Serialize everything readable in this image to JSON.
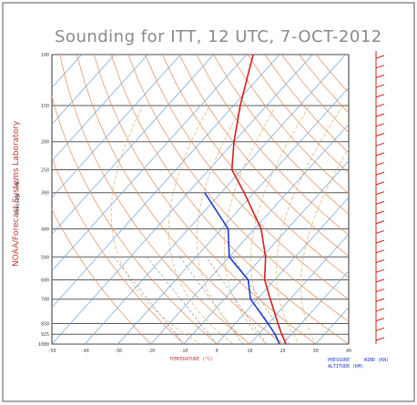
{
  "chart_data": {
    "type": "skew-t sounding",
    "title": "Sounding for ITT, 12 UTC,  7-OCT-2012",
    "side_label": "NOAA/Forecast Systems Laboratory",
    "ylabel": "PRESSURE (MB)",
    "xlabel": "TEMPERATURE (°C)",
    "right_labels": [
      "PRESSURE",
      "ALTITUDE (KM)",
      "WIND (KN)"
    ],
    "x_tick_labels": [
      "-50",
      "-40",
      "-30",
      "-20",
      "-10",
      "0",
      "10",
      "20",
      "30",
      "40"
    ],
    "y_tick_labels": [
      "100",
      "150",
      "200",
      "250",
      "300",
      "400",
      "500",
      "600",
      "700",
      "850",
      "925",
      "1000"
    ],
    "pressure_levels": [
      100,
      150,
      200,
      250,
      300,
      400,
      500,
      600,
      700,
      850,
      925,
      1000
    ],
    "temperature_range": [
      -50,
      40
    ],
    "temperature_profile_mb_c": [
      [
        1000,
        21
      ],
      [
        925,
        17
      ],
      [
        850,
        13
      ],
      [
        700,
        4
      ],
      [
        600,
        -3
      ],
      [
        500,
        -9
      ],
      [
        400,
        -18
      ],
      [
        300,
        -33
      ],
      [
        250,
        -43
      ],
      [
        200,
        -50
      ],
      [
        150,
        -58
      ],
      [
        100,
        -68
      ]
    ],
    "dewpoint_profile_mb_c": [
      [
        1000,
        19
      ],
      [
        925,
        15
      ],
      [
        850,
        10
      ],
      [
        700,
        -2
      ],
      [
        600,
        -8
      ],
      [
        500,
        -20
      ],
      [
        400,
        -28
      ],
      [
        300,
        -45
      ]
    ],
    "colors": {
      "temperature": "#d02020",
      "dewpoint": "#1a3ad0",
      "isotherm": "#6aa0d8",
      "dry_adiabat": "#e58a55",
      "moist_adiabat": "#e0b070",
      "mixing_ratio": "#8a8a8a",
      "isobar": "#5a5a5a",
      "wind_barb": "#d02020",
      "title": "#8a8a8a"
    }
  }
}
